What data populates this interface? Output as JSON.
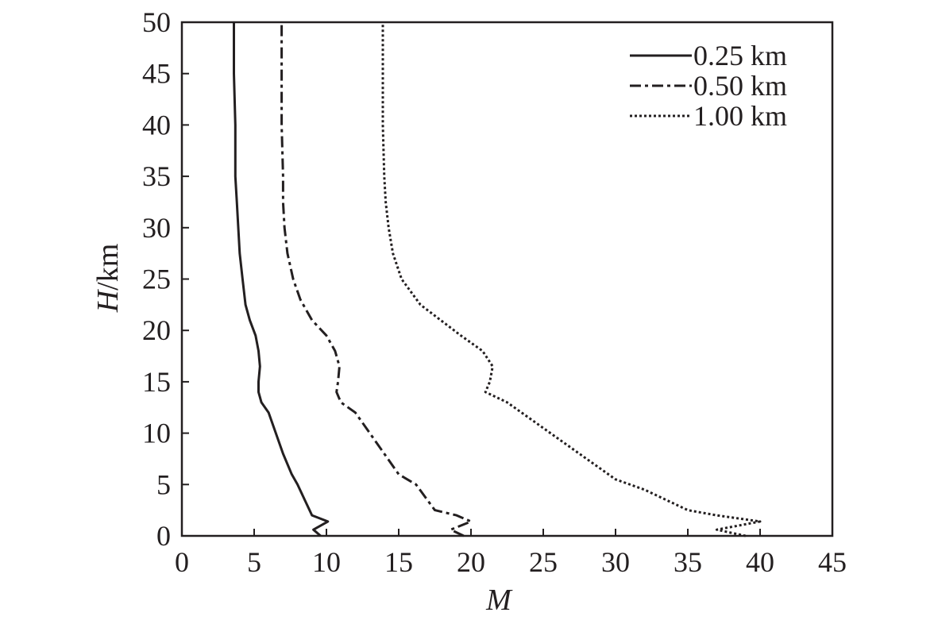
{
  "chart_data": {
    "type": "line",
    "xlabel": "M",
    "ylabel_italic": "H",
    "ylabel_unit": "/km",
    "xlim": [
      0,
      45
    ],
    "ylim": [
      0,
      50
    ],
    "xticks": [
      0,
      5,
      10,
      15,
      20,
      25,
      30,
      35,
      40,
      45
    ],
    "yticks": [
      0,
      5,
      10,
      15,
      20,
      25,
      30,
      35,
      40,
      45,
      50
    ],
    "grid": false,
    "legend_position": "top-right",
    "colors": {
      "line": "#231f20",
      "axis": "#231f20"
    },
    "series": [
      {
        "name": "0.25 km",
        "style": "solid",
        "x": [
          9.6,
          9.1,
          10.1,
          9.0,
          8.5,
          8.0,
          7.6,
          7.0,
          6.5,
          6.0,
          5.5,
          5.3,
          5.3,
          5.4,
          5.3,
          5.1,
          4.7,
          4.4,
          4.2,
          4.0,
          3.9,
          3.8,
          3.7,
          3.7,
          3.6,
          3.6
        ],
        "y": [
          0,
          0.6,
          1.4,
          2.0,
          3.5,
          5.0,
          6.0,
          8.0,
          10.0,
          12.0,
          13.0,
          14.0,
          15.0,
          16.5,
          18.0,
          19.5,
          21.0,
          22.5,
          25.0,
          27.5,
          30.0,
          32.5,
          35.0,
          40.0,
          45.0,
          50.0
        ]
      },
      {
        "name": "0.50 km",
        "style": "dashdot",
        "x": [
          19.5,
          18.6,
          20.0,
          19.0,
          17.5,
          16.2,
          15.0,
          14.0,
          13.0,
          12.0,
          11.0,
          10.7,
          10.8,
          10.9,
          10.6,
          10.0,
          9.0,
          8.2,
          7.7,
          7.3,
          7.1,
          7.0,
          7.0,
          6.9,
          6.9
        ],
        "y": [
          0,
          0.6,
          1.4,
          2.0,
          2.5,
          5.0,
          6.0,
          8.0,
          10.0,
          12.0,
          13.0,
          14.0,
          15.0,
          16.5,
          18.0,
          19.5,
          21.0,
          23.0,
          25.0,
          27.5,
          30.0,
          32.5,
          35.0,
          40.0,
          50.0
        ]
      },
      {
        "name": "1.00 km",
        "style": "dotted",
        "x": [
          39.0,
          37.0,
          40.0,
          37.0,
          35.0,
          32.0,
          30.0,
          28.0,
          26.0,
          24.0,
          22.5,
          21.0,
          21.3,
          21.5,
          20.8,
          19.3,
          16.5,
          15.2,
          14.6,
          14.3,
          14.1,
          14.0,
          13.9,
          13.9
        ],
        "y": [
          0,
          0.6,
          1.4,
          2.0,
          2.5,
          4.5,
          5.5,
          7.5,
          9.5,
          11.5,
          13.0,
          14.0,
          15.0,
          16.5,
          18.0,
          19.5,
          22.5,
          25.0,
          27.5,
          30.0,
          32.5,
          35.0,
          40.0,
          50.0
        ]
      }
    ]
  }
}
